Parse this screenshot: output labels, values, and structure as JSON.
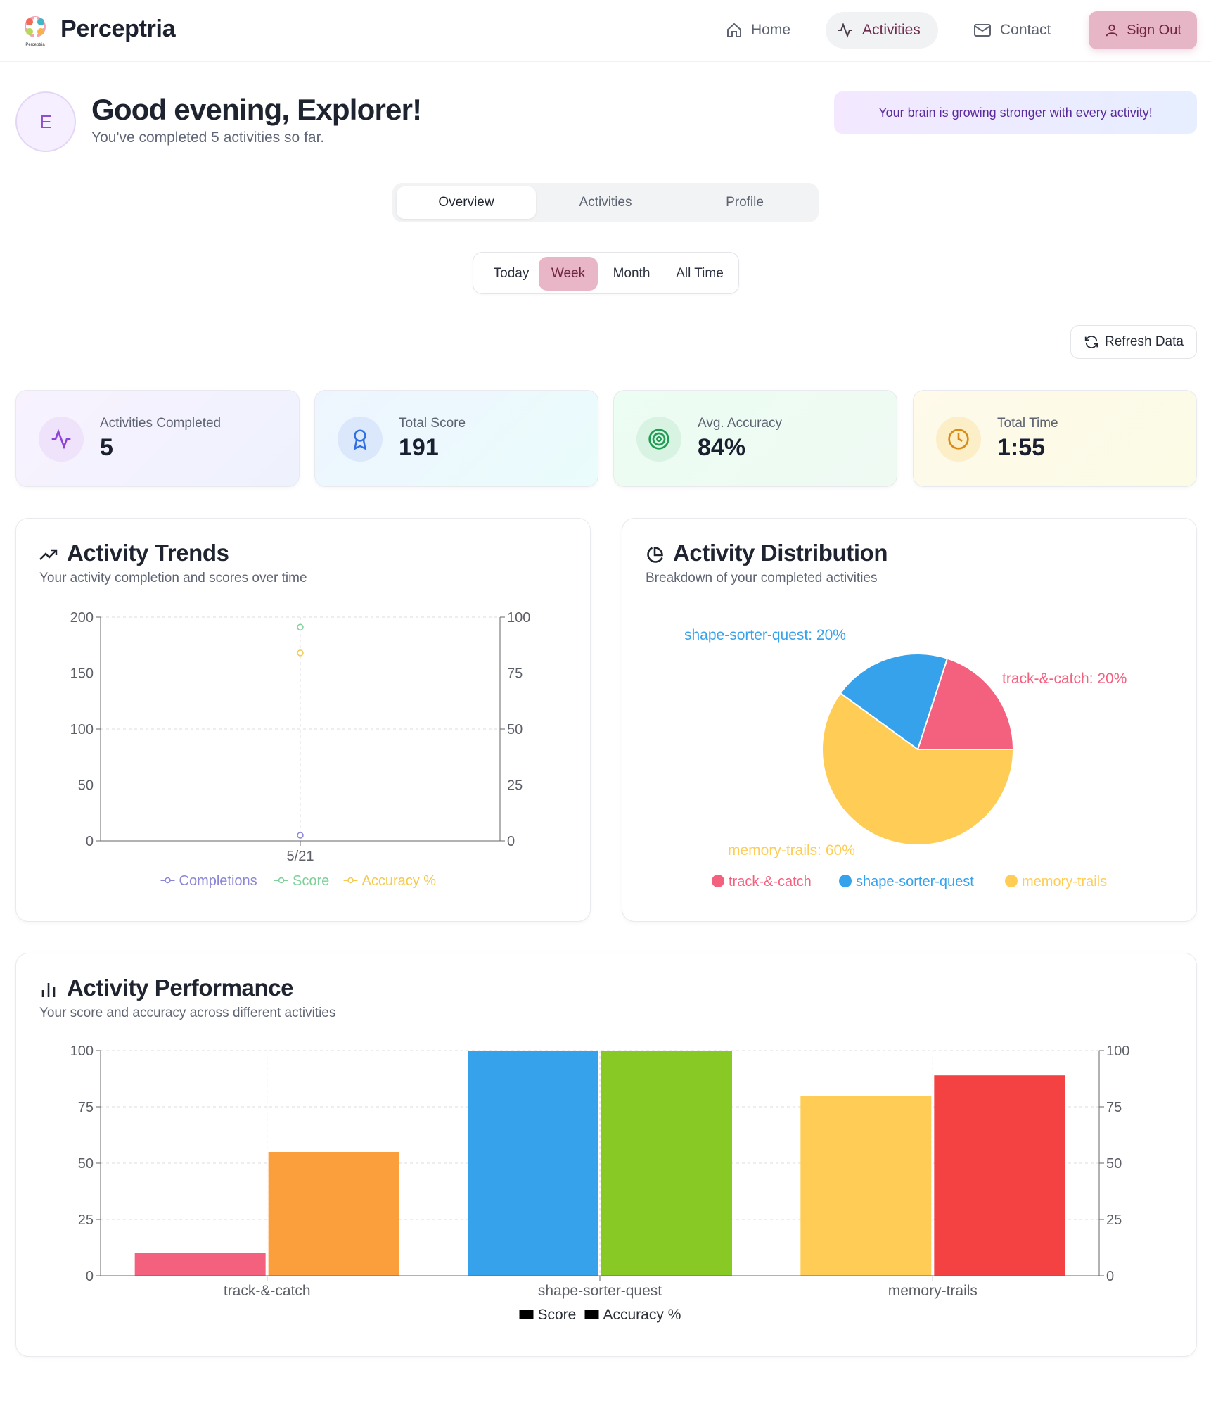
{
  "header": {
    "brand": "Perceptria",
    "logo_caption": "Perceptria",
    "nav": [
      {
        "label": "Home",
        "icon": "home-icon"
      },
      {
        "label": "Activities",
        "icon": "activity-icon"
      },
      {
        "label": "Contact",
        "icon": "mail-icon"
      }
    ],
    "signout_label": "Sign Out"
  },
  "greeting": {
    "avatar_initial": "E",
    "title": "Good evening, Explorer!",
    "subtitle": "You've completed 5 activities so far.",
    "motivation": "Your brain is growing stronger with every activity!"
  },
  "tabs": [
    "Overview",
    "Activities",
    "Profile"
  ],
  "active_tab": "Overview",
  "ranges": [
    "Today",
    "Week",
    "Month",
    "All Time"
  ],
  "active_range": "Week",
  "refresh_label": "Refresh Data",
  "stats": [
    {
      "label": "Activities Completed",
      "value": "5",
      "icon": "activity-icon",
      "color": "#8e44d8"
    },
    {
      "label": "Total Score",
      "value": "191",
      "icon": "award-icon",
      "color": "#2f6ee3"
    },
    {
      "label": "Avg. Accuracy",
      "value": "84%",
      "icon": "target-icon",
      "color": "#1f9d55"
    },
    {
      "label": "Total Time",
      "value": "1:55",
      "icon": "clock-icon",
      "color": "#d98a12"
    }
  ],
  "trends": {
    "title": "Activity Trends",
    "subtitle": "Your activity completion and scores over time"
  },
  "distribution": {
    "title": "Activity Distribution",
    "subtitle": "Breakdown of your completed activities"
  },
  "performance": {
    "title": "Activity Performance",
    "subtitle": "Your score and accuracy across different activities"
  },
  "chart_data": [
    {
      "type": "line",
      "title": "Activity Trends",
      "x": [
        "5/21"
      ],
      "yleft": {
        "ylim": [
          0,
          200
        ],
        "ticks": [
          0,
          50,
          100,
          150,
          200
        ]
      },
      "yright": {
        "ylim": [
          0,
          100
        ],
        "ticks": [
          0,
          25,
          50,
          75,
          100
        ]
      },
      "series": [
        {
          "name": "Completions",
          "axis": "left",
          "values": [
            5
          ],
          "color": "#8a85d6"
        },
        {
          "name": "Score",
          "axis": "left",
          "values": [
            191
          ],
          "color": "#7fcf9b"
        },
        {
          "name": "Accuracy %",
          "axis": "right",
          "values": [
            84
          ],
          "color": "#f4c94c"
        }
      ]
    },
    {
      "type": "pie",
      "title": "Activity Distribution",
      "slices": [
        {
          "name": "track-&-catch",
          "value": 20,
          "label": "track-&-catch: 20%",
          "color": "#f4617f"
        },
        {
          "name": "shape-sorter-quest",
          "value": 20,
          "label": "shape-sorter-quest: 20%",
          "color": "#36a2eb"
        },
        {
          "name": "memory-trails",
          "value": 60,
          "label": "memory-trails: 60%",
          "color": "#ffcd56"
        }
      ]
    },
    {
      "type": "bar",
      "title": "Activity Performance",
      "categories": [
        "track-&-catch",
        "shape-sorter-quest",
        "memory-trails"
      ],
      "yleft": {
        "ylim": [
          0,
          100
        ],
        "ticks": [
          0,
          25,
          50,
          75,
          100
        ]
      },
      "yright": {
        "ylim": [
          0,
          100
        ],
        "ticks": [
          0,
          25,
          50,
          75,
          100
        ]
      },
      "series": [
        {
          "name": "Score",
          "values": [
            10,
            100,
            80
          ],
          "colors": [
            "#f4617f",
            "#36a2eb",
            "#ffcd56"
          ]
        },
        {
          "name": "Accuracy %",
          "values": [
            55,
            100,
            89
          ],
          "colors": [
            "#fb9e3c",
            "#88c926",
            "#f44242"
          ]
        }
      ],
      "legend_color": "#000000"
    }
  ]
}
